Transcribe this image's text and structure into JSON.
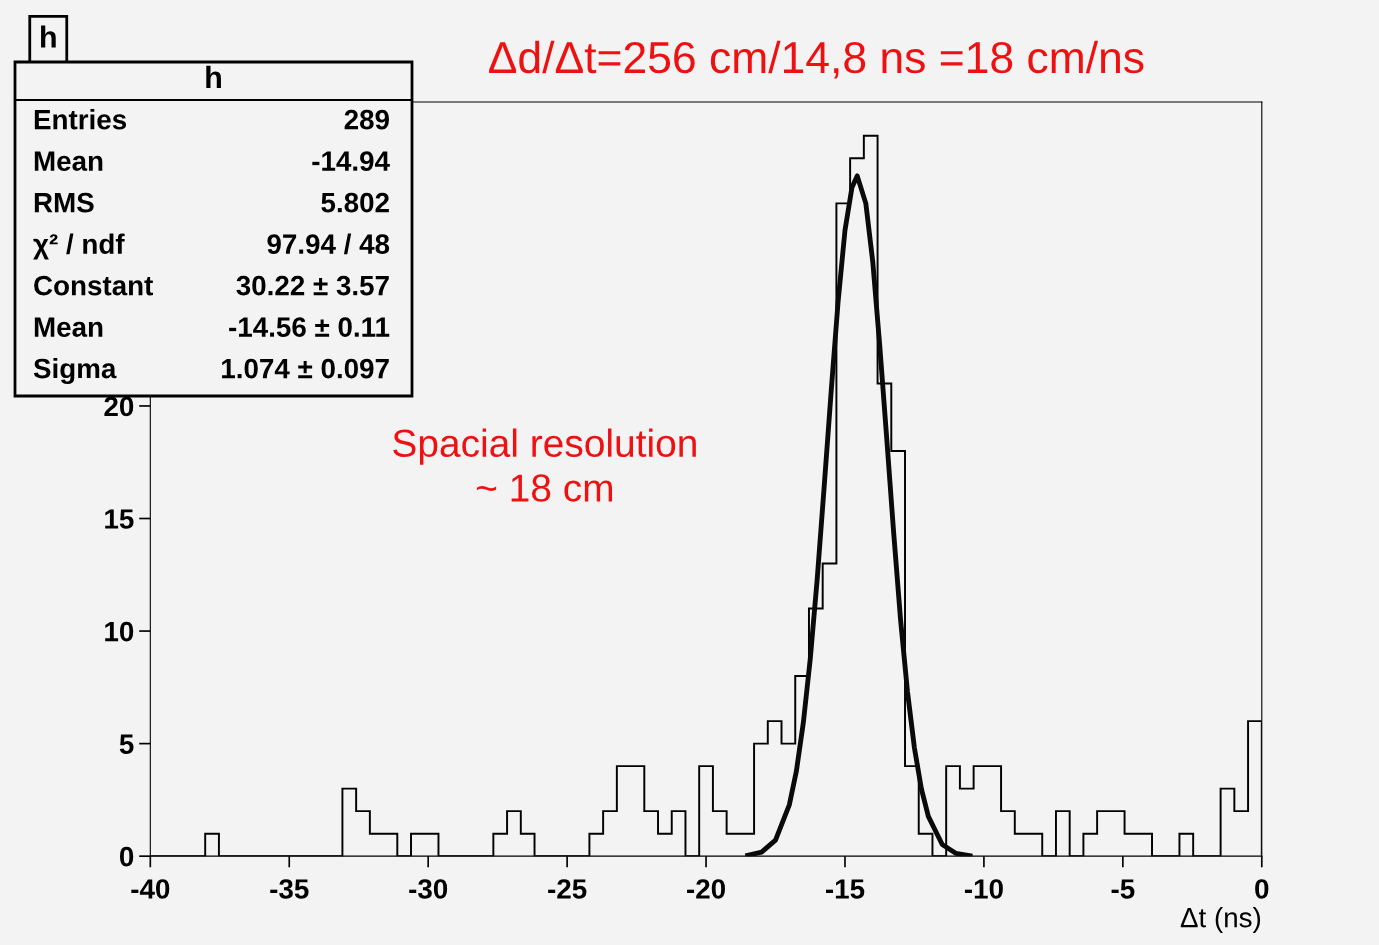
{
  "chart_data": {
    "type": "histogram",
    "title": "h",
    "xlabel": "Δt (ns)",
    "bins": [
      -40,
      -39.5062,
      -39.0123,
      -38.5185,
      -38.0247,
      -37.5309,
      -37.037,
      -36.5432,
      -36.0494,
      -35.5556,
      -35.0617,
      -34.5679,
      -34.0741,
      -33.5802,
      -33.0864,
      -32.5926,
      -32.0988,
      -31.6049,
      -31.1111,
      -30.6173,
      -30.1235,
      -29.6296,
      -29.1358,
      -28.642,
      -28.1481,
      -27.6543,
      -27.1605,
      -26.6667,
      -26.1728,
      -25.679,
      -25.1852,
      -24.6914,
      -24.1975,
      -23.7037,
      -23.2099,
      -22.716,
      -22.2222,
      -21.7284,
      -21.2346,
      -20.7407,
      -20.2469,
      -19.7531,
      -19.2593,
      -18.7654,
      -18.2716,
      -17.7778,
      -17.284,
      -16.7901,
      -16.2963,
      -15.8025,
      -15.3086,
      -14.8148,
      -14.321,
      -13.8272,
      -13.3333,
      -12.8395,
      -12.3457,
      -11.8519,
      -11.358,
      -10.8642,
      -10.3704,
      -9.8765,
      -9.3827,
      -8.8889,
      -8.3951,
      -7.9012,
      -7.4074,
      -6.9136,
      -6.4198,
      -5.9259,
      -5.4321,
      -4.9383,
      -4.4444,
      -3.9506,
      -3.4568,
      -2.963,
      -2.4691,
      -1.9753,
      -1.4815,
      -0.9877,
      -0.4938,
      0
    ],
    "values": [
      0,
      0,
      0,
      0,
      1,
      0,
      0,
      0,
      0,
      0,
      0,
      0,
      0,
      0,
      3,
      2,
      1,
      1,
      0,
      1,
      1,
      0,
      0,
      0,
      0,
      1,
      2,
      1,
      0,
      0,
      0,
      0,
      1,
      2,
      4,
      4,
      2,
      1,
      2,
      0,
      4,
      2,
      1,
      1,
      5,
      6,
      5,
      8,
      11,
      13,
      29,
      31,
      32,
      21,
      18,
      4,
      1,
      0,
      4,
      3,
      4,
      4,
      2,
      1,
      1,
      0,
      2,
      0,
      1,
      2,
      2,
      1,
      1,
      0,
      0,
      1,
      0,
      0,
      3,
      2,
      6
    ],
    "color": "#000000",
    "series": [
      {
        "type": "line",
        "color": "#0a0a0a",
        "x": [
          -18.5,
          -18,
          -17.5,
          -17,
          -16.75,
          -16.5,
          -16.25,
          -16,
          -15.75,
          -15.5,
          -15.25,
          -15,
          -14.75,
          -14.56,
          -14.25,
          -14,
          -13.75,
          -13.5,
          -13.25,
          -13,
          -12.75,
          -12.5,
          -12.25,
          -12,
          -11.5,
          -11,
          -10.5
        ],
        "values": [
          0.04,
          0.18,
          0.71,
          2.29,
          3.77,
          5.92,
          8.76,
          12.3,
          16.4,
          20.6,
          24.6,
          27.8,
          29.7,
          30.22,
          29.0,
          26.4,
          22.7,
          18.6,
          14.4,
          10.5,
          7.3,
          4.8,
          2.99,
          1.77,
          0.52,
          0.12,
          0.02
        ]
      }
    ],
    "xlim": [
      -40,
      0
    ],
    "ylim": [
      0,
      33.5
    ],
    "xticks": [
      -40,
      -35,
      -30,
      -25,
      -20,
      -15,
      -10,
      -5,
      0
    ],
    "yticks": [
      0,
      5,
      10,
      15,
      20
    ],
    "grid": false,
    "legend": false,
    "annotations": [
      "Δd/Δt=256 cm/14,8 ns =18 cm/ns",
      "Spacial resolution\n~ 18 cm",
      "h",
      "Entries",
      "289",
      "Mean",
      "-14.94",
      "RMS",
      "5.802",
      "χ² / ndf",
      "97.94 / 48",
      "Constant",
      "30.22 ± 3.57",
      "Mean",
      "-14.56 ± 0.11",
      "Sigma",
      "1.074 ± 0.097"
    ]
  }
}
